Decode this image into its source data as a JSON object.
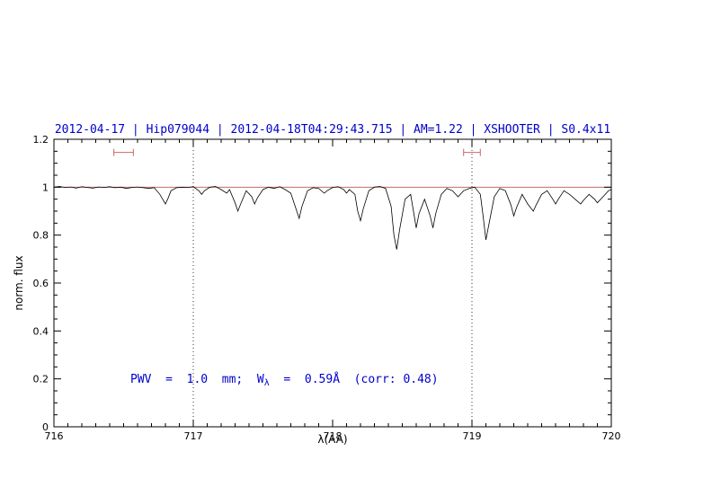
{
  "chart_data": {
    "type": "line",
    "title": "2012-04-17 | Hip079044 | 2012-04-18T04:29:43.715 | AM=1.22 | XSHOOTER | S0.4x11",
    "title_color": "#0000cc",
    "xlabel": "λ(AA)",
    "ylabel": "norm. flux",
    "xlim": [
      716,
      720
    ],
    "ylim": [
      0,
      1.2
    ],
    "x_ticks": [
      716,
      717,
      718,
      719,
      720
    ],
    "x_tick_labels": [
      "716",
      "717",
      "718",
      "719",
      "720"
    ],
    "y_ticks": [
      0,
      0.2,
      0.4,
      0.6,
      0.8,
      1,
      1.2
    ],
    "y_tick_labels": [
      "0",
      "0.2",
      "0.4",
      "0.6",
      "0.8",
      "1",
      "1.2"
    ],
    "x_minor_step": 0.1,
    "y_minor_step": 0.05,
    "grid": false,
    "legend": false,
    "dotted_vlines": [
      717,
      719
    ],
    "continuum_line": {
      "y": 1.0,
      "color": "#bb5555"
    },
    "range_markers": [
      {
        "x1": 716.43,
        "x2": 716.57,
        "y": 1.145,
        "color": "#cc6666"
      },
      {
        "x1": 718.94,
        "x2": 719.06,
        "y": 1.145,
        "color": "#cc6666"
      }
    ],
    "annotation": {
      "prefix": "PWV  =  1.0  mm;  W",
      "sub": "λ",
      "suffix": "  =  0.59Å  (corr: 0.48)",
      "color": "#0000cc"
    },
    "series": [
      {
        "name": "spectrum",
        "color": "#000000",
        "points": [
          [
            716.0,
            1.0
          ],
          [
            716.04,
            1.003
          ],
          [
            716.08,
            0.999
          ],
          [
            716.12,
            1.001
          ],
          [
            716.16,
            0.996
          ],
          [
            716.2,
            1.002
          ],
          [
            716.24,
            0.999
          ],
          [
            716.28,
            0.996
          ],
          [
            716.32,
            1.001
          ],
          [
            716.36,
            0.999
          ],
          [
            716.4,
            1.002
          ],
          [
            716.44,
            0.998
          ],
          [
            716.48,
            1.0
          ],
          [
            716.52,
            0.995
          ],
          [
            716.56,
            0.999
          ],
          [
            716.6,
            1.001
          ],
          [
            716.64,
            0.998
          ],
          [
            716.68,
            0.995
          ],
          [
            716.72,
            0.998
          ],
          [
            716.76,
            0.97
          ],
          [
            716.8,
            0.93
          ],
          [
            716.82,
            0.955
          ],
          [
            716.84,
            0.985
          ],
          [
            716.88,
            0.998
          ],
          [
            716.92,
            1.0
          ],
          [
            716.96,
            0.999
          ],
          [
            717.0,
            1.002
          ],
          [
            717.04,
            0.985
          ],
          [
            717.06,
            0.97
          ],
          [
            717.08,
            0.985
          ],
          [
            717.12,
            1.0
          ],
          [
            717.16,
            1.003
          ],
          [
            717.2,
            0.99
          ],
          [
            717.24,
            0.975
          ],
          [
            717.26,
            0.99
          ],
          [
            717.3,
            0.935
          ],
          [
            717.32,
            0.9
          ],
          [
            717.34,
            0.93
          ],
          [
            717.38,
            0.985
          ],
          [
            717.42,
            0.96
          ],
          [
            717.44,
            0.93
          ],
          [
            717.46,
            0.955
          ],
          [
            717.5,
            0.99
          ],
          [
            717.54,
            1.0
          ],
          [
            717.58,
            0.995
          ],
          [
            717.62,
            1.002
          ],
          [
            717.66,
            0.99
          ],
          [
            717.7,
            0.975
          ],
          [
            717.74,
            0.905
          ],
          [
            717.76,
            0.87
          ],
          [
            717.78,
            0.92
          ],
          [
            717.82,
            0.985
          ],
          [
            717.86,
            0.998
          ],
          [
            717.9,
            0.995
          ],
          [
            717.94,
            0.975
          ],
          [
            717.96,
            0.985
          ],
          [
            718.0,
            0.999
          ],
          [
            718.04,
            1.002
          ],
          [
            718.08,
            0.99
          ],
          [
            718.1,
            0.975
          ],
          [
            718.12,
            0.99
          ],
          [
            718.16,
            0.97
          ],
          [
            718.18,
            0.9
          ],
          [
            718.2,
            0.86
          ],
          [
            718.22,
            0.91
          ],
          [
            718.26,
            0.985
          ],
          [
            718.3,
            1.0
          ],
          [
            718.34,
            1.003
          ],
          [
            718.38,
            0.995
          ],
          [
            718.42,
            0.92
          ],
          [
            718.44,
            0.8
          ],
          [
            718.46,
            0.74
          ],
          [
            718.48,
            0.82
          ],
          [
            718.52,
            0.95
          ],
          [
            718.56,
            0.97
          ],
          [
            718.58,
            0.9
          ],
          [
            718.6,
            0.83
          ],
          [
            718.62,
            0.89
          ],
          [
            718.66,
            0.95
          ],
          [
            718.7,
            0.88
          ],
          [
            718.72,
            0.83
          ],
          [
            718.74,
            0.89
          ],
          [
            718.78,
            0.97
          ],
          [
            718.82,
            0.995
          ],
          [
            718.86,
            0.985
          ],
          [
            718.9,
            0.96
          ],
          [
            718.94,
            0.985
          ],
          [
            718.98,
            0.995
          ],
          [
            719.02,
            1.0
          ],
          [
            719.06,
            0.97
          ],
          [
            719.08,
            0.88
          ],
          [
            719.1,
            0.78
          ],
          [
            719.12,
            0.84
          ],
          [
            719.16,
            0.96
          ],
          [
            719.2,
            0.995
          ],
          [
            719.24,
            0.985
          ],
          [
            719.28,
            0.925
          ],
          [
            719.3,
            0.88
          ],
          [
            719.32,
            0.915
          ],
          [
            719.36,
            0.97
          ],
          [
            719.4,
            0.93
          ],
          [
            719.44,
            0.9
          ],
          [
            719.46,
            0.925
          ],
          [
            719.5,
            0.97
          ],
          [
            719.54,
            0.985
          ],
          [
            719.58,
            0.95
          ],
          [
            719.6,
            0.93
          ],
          [
            719.62,
            0.95
          ],
          [
            719.66,
            0.985
          ],
          [
            719.7,
            0.97
          ],
          [
            719.74,
            0.95
          ],
          [
            719.78,
            0.93
          ],
          [
            719.8,
            0.945
          ],
          [
            719.84,
            0.97
          ],
          [
            719.88,
            0.95
          ],
          [
            719.9,
            0.935
          ],
          [
            719.94,
            0.96
          ],
          [
            719.98,
            0.985
          ],
          [
            720.0,
            0.99
          ]
        ]
      }
    ]
  }
}
